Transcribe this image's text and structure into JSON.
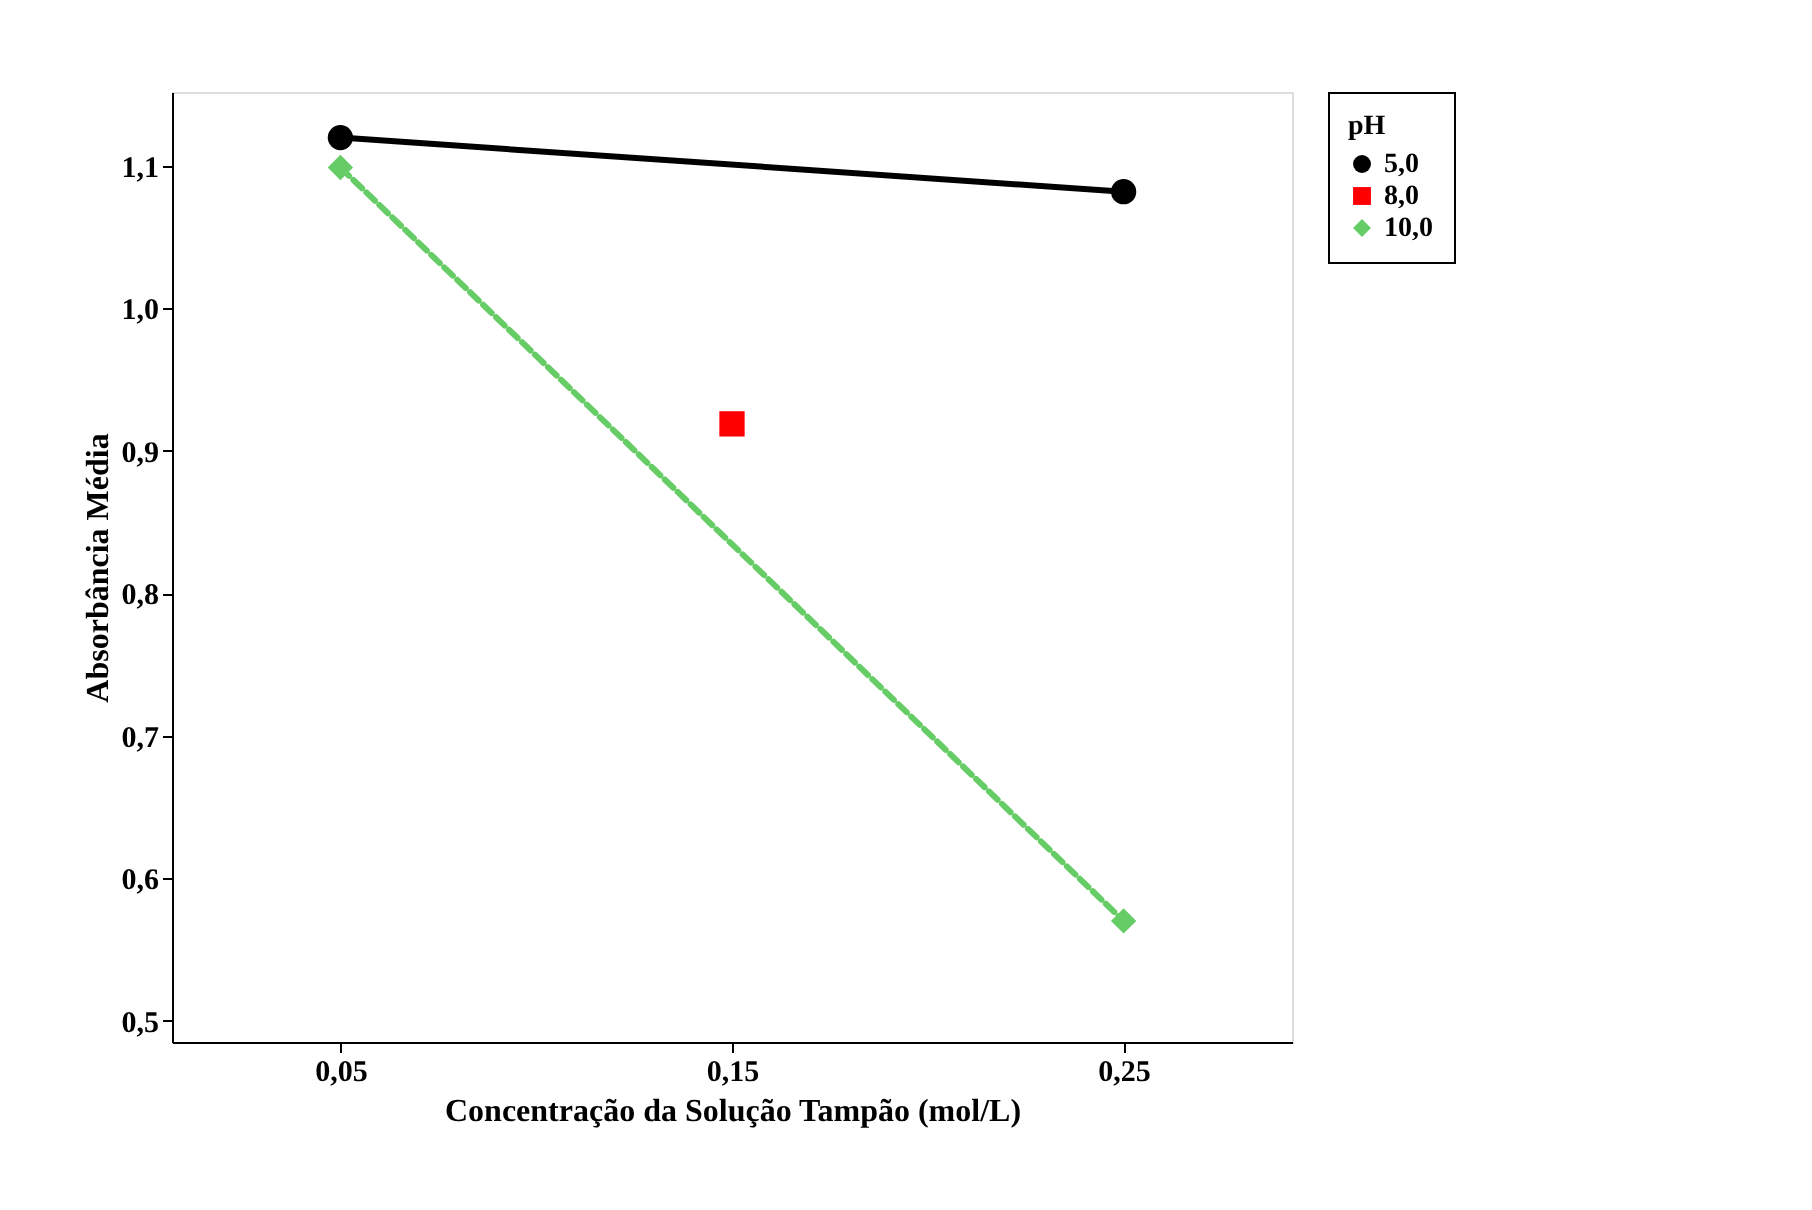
{
  "chart_data": {
    "type": "line",
    "xlabel": "Concentração da Solução Tampão (mol/L)",
    "ylabel": "Absorbância Média",
    "legend_title": "pH",
    "legend": "right",
    "xlim": [
      0.007,
      0.293
    ],
    "xticks": [
      {
        "value": 0.05,
        "label": "0,05"
      },
      {
        "value": 0.15,
        "label": "0,15"
      },
      {
        "value": 0.25,
        "label": "0,25"
      }
    ],
    "ylim": [
      0.485,
      1.152
    ],
    "yticks": [
      {
        "value": 0.5,
        "label": "0,5"
      },
      {
        "value": 0.6,
        "label": "0,6"
      },
      {
        "value": 0.7,
        "label": "0,7"
      },
      {
        "value": 0.8,
        "label": "0,8"
      },
      {
        "value": 0.9,
        "label": "0,9"
      },
      {
        "value": 1.0,
        "label": "1,0"
      },
      {
        "value": 1.1,
        "label": "1,1"
      }
    ],
    "grid": false,
    "series": [
      {
        "name": "5,0",
        "color": "#000000",
        "marker": "circle",
        "line_style": "solid",
        "x": [
          0.05,
          0.25
        ],
        "values": [
          1.12,
          1.082
        ]
      },
      {
        "name": "8,0",
        "color": "#ff0000",
        "marker": "square",
        "line_style": "dashed",
        "x": [
          0.15
        ],
        "values": [
          0.919
        ]
      },
      {
        "name": "10,0",
        "color": "#66cc66",
        "marker": "diamond",
        "line_style": "dashed",
        "x": [
          0.05,
          0.25
        ],
        "values": [
          1.099,
          0.57
        ]
      }
    ]
  }
}
